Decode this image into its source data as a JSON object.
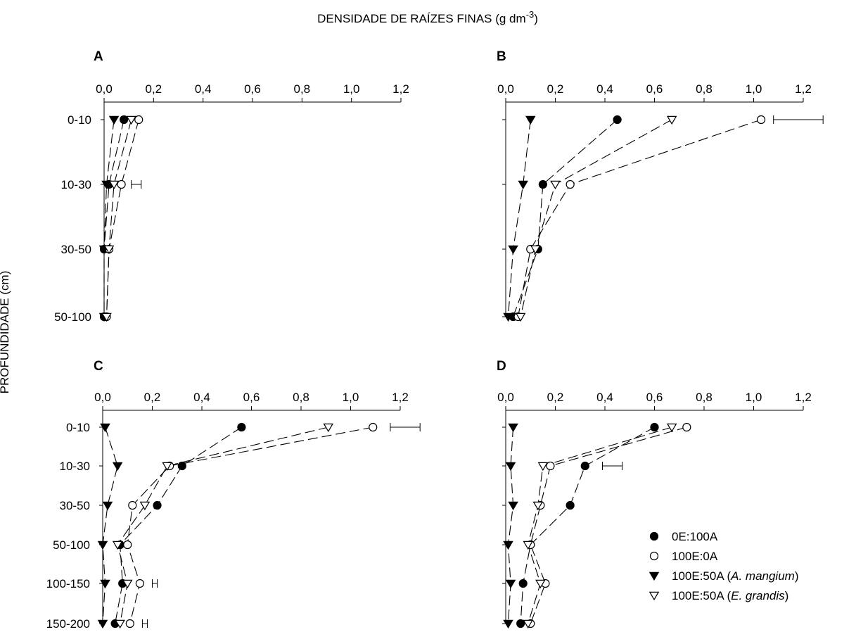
{
  "figure": {
    "title_main": "DENSIDADE DE RAÍZES FINAS (g dm",
    "title_sup": "-3",
    "title_end": ")",
    "ylabel": "PROFUNDIDADE (cm)"
  },
  "legend": {
    "items": [
      {
        "label": "0E:100A",
        "italic": "",
        "end": ""
      },
      {
        "label": "100E:0A",
        "italic": "",
        "end": ""
      },
      {
        "label": "100E:50A (",
        "italic": "A. mangium",
        "end": ")"
      },
      {
        "label": "100E:50A  (",
        "italic": "E. grandis",
        "end": ")"
      }
    ]
  },
  "chart_data": [
    {
      "type": "line",
      "panel": "A",
      "x_ticks": [
        "0,0",
        "0,2",
        "0,4",
        "0,6",
        "0,8",
        "1,0",
        "1,2"
      ],
      "xlim": [
        0,
        1.2
      ],
      "depth_categories": [
        "0-10",
        "10-30",
        "30-50",
        "50-100"
      ],
      "series": [
        {
          "name": "0E:100A",
          "marker": "filled-circle",
          "values": [
            0.08,
            0.02,
            0.0,
            0.0
          ]
        },
        {
          "name": "100E:0A",
          "marker": "open-circle",
          "values": [
            0.14,
            0.07,
            0.02,
            0.01
          ]
        },
        {
          "name": "100E:50A (A. mangium)",
          "marker": "filled-triangle-down",
          "values": [
            0.04,
            0.01,
            0.0,
            0.0
          ]
        },
        {
          "name": "100E:50A  (E. grandis)",
          "marker": "open-triangle-down",
          "values": [
            0.11,
            0.04,
            0.02,
            0.01
          ]
        }
      ],
      "error_bar": {
        "row": "10-30",
        "x": 0.13,
        "half_width": 0.02
      }
    },
    {
      "type": "line",
      "panel": "B",
      "x_ticks": [
        "0,0",
        "0,2",
        "0,4",
        "0,6",
        "0,8",
        "1,0",
        "1,2"
      ],
      "xlim": [
        0,
        1.2
      ],
      "depth_categories": [
        "0-10",
        "10-30",
        "30-50",
        "50-100"
      ],
      "series": [
        {
          "name": "0E:100A",
          "marker": "filled-circle",
          "values": [
            0.45,
            0.15,
            0.13,
            0.03
          ]
        },
        {
          "name": "100E:0A",
          "marker": "open-circle",
          "values": [
            1.03,
            0.26,
            0.1,
            0.05
          ]
        },
        {
          "name": "100E:50A (A. mangium)",
          "marker": "filled-triangle-down",
          "values": [
            0.1,
            0.07,
            0.03,
            0.01
          ]
        },
        {
          "name": "100E:50A  (E. grandis)",
          "marker": "open-triangle-down",
          "values": [
            0.67,
            0.2,
            0.12,
            0.06
          ]
        }
      ],
      "error_bar": {
        "row": "0-10",
        "x": 1.18,
        "half_width": 0.1
      }
    },
    {
      "type": "line",
      "panel": "C",
      "x_ticks": [
        "0,0",
        "0,2",
        "0,4",
        "0,6",
        "0,8",
        "1,0",
        "1,2"
      ],
      "xlim": [
        0,
        1.2
      ],
      "depth_categories": [
        "0-10",
        "10-30",
        "30-50",
        "50-100",
        "100-150",
        "150-200"
      ],
      "series": [
        {
          "name": "0E:100A",
          "marker": "filled-circle",
          "values": [
            0.56,
            0.32,
            0.22,
            0.07,
            0.08,
            0.05
          ]
        },
        {
          "name": "100E:0A",
          "marker": "open-circle",
          "values": [
            1.09,
            0.27,
            0.12,
            0.1,
            0.15,
            0.11
          ]
        },
        {
          "name": "100E:50A (A. mangium)",
          "marker": "filled-triangle-down",
          "values": [
            0.01,
            0.06,
            0.02,
            0.0,
            0.01,
            0.0
          ]
        },
        {
          "name": "100E:50A  (E. grandis)",
          "marker": "open-triangle-down",
          "values": [
            0.91,
            0.26,
            0.17,
            0.06,
            0.1,
            0.07
          ]
        }
      ],
      "error_bars": [
        {
          "row": "0-10",
          "x": 1.22,
          "half_width": 0.06
        },
        {
          "row": "100-150",
          "x": 0.21,
          "half_width": 0.01
        },
        {
          "row": "150-200",
          "x": 0.17,
          "half_width": 0.01
        }
      ]
    },
    {
      "type": "line",
      "panel": "D",
      "x_ticks": [
        "0,0",
        "0,2",
        "0,4",
        "0,6",
        "0,8",
        "1,0",
        "1,2"
      ],
      "xlim": [
        0,
        1.2
      ],
      "depth_categories": [
        "0-10",
        "10-30",
        "30-50",
        "50-100",
        "100-150",
        "150-200"
      ],
      "series": [
        {
          "name": "0E:100A",
          "marker": "filled-circle",
          "values": [
            0.6,
            0.32,
            0.26,
            0.1,
            0.07,
            0.06
          ]
        },
        {
          "name": "100E:0A",
          "marker": "open-circle",
          "values": [
            0.73,
            0.18,
            0.14,
            0.1,
            0.16,
            0.1
          ]
        },
        {
          "name": "100E:50A (A. mangium)",
          "marker": "filled-triangle-down",
          "values": [
            0.03,
            0.02,
            0.03,
            0.01,
            0.02,
            0.01
          ]
        },
        {
          "name": "100E:50A  (E. grandis)",
          "marker": "open-triangle-down",
          "values": [
            0.67,
            0.15,
            0.13,
            0.09,
            0.14,
            0.09
          ]
        }
      ],
      "error_bar": {
        "row": "10-30",
        "x": 0.43,
        "half_width": 0.04
      }
    }
  ]
}
